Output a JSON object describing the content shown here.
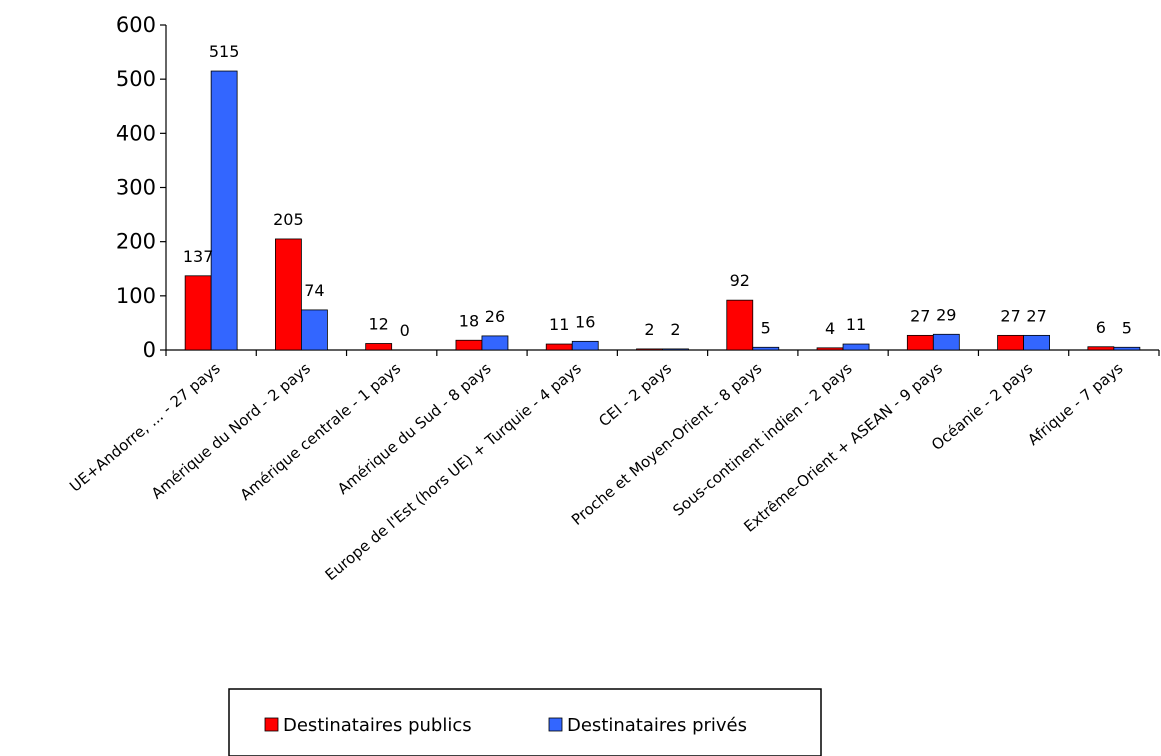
{
  "chart_data": {
    "type": "bar",
    "categories": [
      "UE+Andorre, ...     - 27 pays",
      "Amérique du Nord - 2 pays",
      "Amérique centrale - 1 pays",
      "Amérique du Sud - 8 pays",
      "Europe de l'Est (hors UE) + Turquie - 4 pays",
      "CEI - 2 pays",
      "Proche et Moyen-Orient - 8 pays",
      "Sous-continent indien - 2 pays",
      "Extrême-Orient + ASEAN - 9 pays",
      "Océanie - 2 pays",
      "Afrique - 7 pays"
    ],
    "series": [
      {
        "name": "Destinataires publics",
        "color": "#ff0000",
        "values": [
          137,
          205,
          12,
          18,
          11,
          2,
          92,
          4,
          27,
          27,
          6
        ]
      },
      {
        "name": "Destinataires privés",
        "color": "#3366ff",
        "values": [
          515,
          74,
          0,
          26,
          16,
          2,
          5,
          11,
          29,
          27,
          5
        ]
      }
    ],
    "ylim": [
      0,
      600
    ],
    "yticks": [
      0,
      100,
      200,
      300,
      400,
      500,
      600
    ],
    "grid": false,
    "legend_position": "bottom"
  }
}
